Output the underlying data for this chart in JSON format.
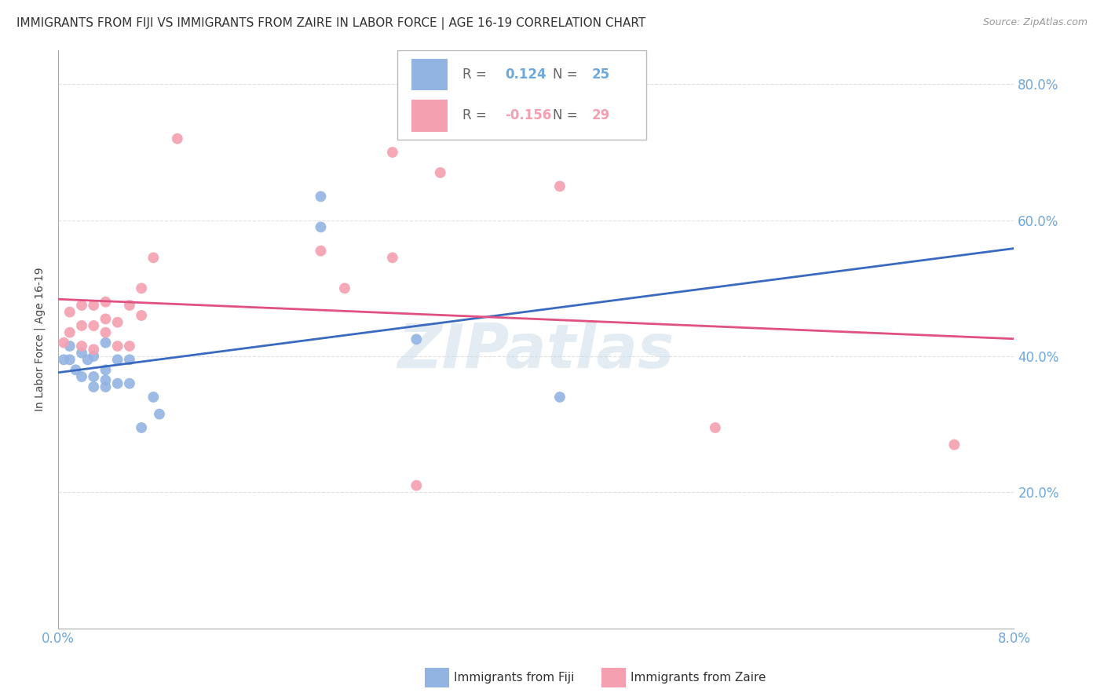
{
  "title": "IMMIGRANTS FROM FIJI VS IMMIGRANTS FROM ZAIRE IN LABOR FORCE | AGE 16-19 CORRELATION CHART",
  "source": "Source: ZipAtlas.com",
  "ylabel": "In Labor Force | Age 16-19",
  "xlim": [
    0.0,
    0.08
  ],
  "ylim": [
    0.0,
    0.85
  ],
  "fiji_color": "#92b4e3",
  "fiji_line_color": "#3a6abf",
  "zaire_color": "#f4a0b0",
  "zaire_line_color": "#e05080",
  "tick_color": "#6fa8dc",
  "grid_color": "#e0e0e0",
  "fiji_R": 0.124,
  "fiji_N": 25,
  "zaire_R": -0.156,
  "zaire_N": 29,
  "fiji_scatter_x": [
    0.0005,
    0.001,
    0.001,
    0.0015,
    0.002,
    0.002,
    0.0025,
    0.003,
    0.003,
    0.003,
    0.004,
    0.004,
    0.004,
    0.004,
    0.005,
    0.005,
    0.006,
    0.006,
    0.007,
    0.008,
    0.0085,
    0.022,
    0.022,
    0.03,
    0.042
  ],
  "fiji_scatter_y": [
    0.395,
    0.415,
    0.395,
    0.38,
    0.37,
    0.405,
    0.395,
    0.355,
    0.37,
    0.4,
    0.355,
    0.365,
    0.38,
    0.42,
    0.36,
    0.395,
    0.36,
    0.395,
    0.295,
    0.34,
    0.315,
    0.635,
    0.59,
    0.425,
    0.34
  ],
  "zaire_scatter_x": [
    0.0005,
    0.001,
    0.001,
    0.002,
    0.002,
    0.002,
    0.003,
    0.003,
    0.003,
    0.004,
    0.004,
    0.004,
    0.005,
    0.005,
    0.006,
    0.006,
    0.007,
    0.007,
    0.008,
    0.01,
    0.022,
    0.024,
    0.028,
    0.028,
    0.03,
    0.032,
    0.042,
    0.055,
    0.075
  ],
  "zaire_scatter_y": [
    0.42,
    0.435,
    0.465,
    0.415,
    0.445,
    0.475,
    0.41,
    0.445,
    0.475,
    0.435,
    0.455,
    0.48,
    0.415,
    0.45,
    0.415,
    0.475,
    0.46,
    0.5,
    0.545,
    0.72,
    0.555,
    0.5,
    0.545,
    0.7,
    0.21,
    0.67,
    0.65,
    0.295,
    0.27
  ],
  "watermark": "ZIPatlas",
  "background_color": "#ffffff"
}
